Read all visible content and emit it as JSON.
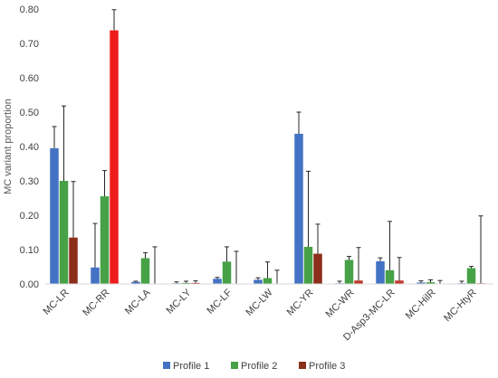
{
  "chart_data": {
    "type": "bar",
    "title": "",
    "xlabel": "",
    "ylabel": "MC variant proportion",
    "ylim": [
      0,
      0.8
    ],
    "yticks": [
      0.0,
      0.1,
      0.2,
      0.3,
      0.4,
      0.5,
      0.6,
      0.7,
      0.8
    ],
    "ytick_labels": [
      "0.00",
      "0.10",
      "0.20",
      "0.30",
      "0.40",
      "0.50",
      "0.60",
      "0.70",
      "0.80"
    ],
    "grid": false,
    "legend_position": "bottom",
    "categories": [
      "MC-LR",
      "MC-RR",
      "MC-LA",
      "MC-LY",
      "MC-LF",
      "MC-LW",
      "MC-YR",
      "MC-WR",
      "D-Asp3-MC-LR",
      "MC-HilR",
      "MC-HtyR"
    ],
    "series": [
      {
        "name": "Profile 1",
        "color": "#4472c4",
        "values": [
          0.395,
          0.048,
          0.006,
          0.002,
          0.015,
          0.012,
          0.437,
          0.002,
          0.066,
          0.004,
          0.002
        ],
        "errors": [
          0.063,
          0.128,
          0.002,
          0.004,
          0.004,
          0.006,
          0.063,
          0.006,
          0.01,
          0.005,
          0.006
        ]
      },
      {
        "name": "Profile 2",
        "color": "#47a146",
        "values": [
          0.3,
          0.255,
          0.075,
          0.003,
          0.065,
          0.017,
          0.108,
          0.07,
          0.04,
          0.005,
          0.046
        ],
        "errors": [
          0.218,
          0.075,
          0.016,
          0.005,
          0.043,
          0.047,
          0.22,
          0.01,
          0.142,
          0.007,
          0.005
        ]
      },
      {
        "name": "Profile 3",
        "color": "#c0392b",
        "values": [
          0.135,
          0.738,
          0.0,
          0.003,
          0.0,
          0.0,
          0.088,
          0.01,
          0.01,
          0.0,
          0.002
        ],
        "errors": [
          0.163,
          0.06,
          0.108,
          0.006,
          0.095,
          0.04,
          0.086,
          0.096,
          0.067,
          0.01,
          0.196
        ]
      }
    ],
    "bar_color_overrides": [
      {
        "series": 2,
        "category": 1,
        "color": "#ee1c1c"
      },
      {
        "series": 2,
        "category": 0,
        "color": "#8b2e1a"
      },
      {
        "series": 2,
        "category": 6,
        "color": "#8b2e1a"
      }
    ]
  },
  "legend": {
    "items": [
      "Profile 1",
      "Profile 2",
      "Profile 3"
    ],
    "colors": [
      "#4472c4",
      "#47a146",
      "#8b2e1a"
    ]
  }
}
